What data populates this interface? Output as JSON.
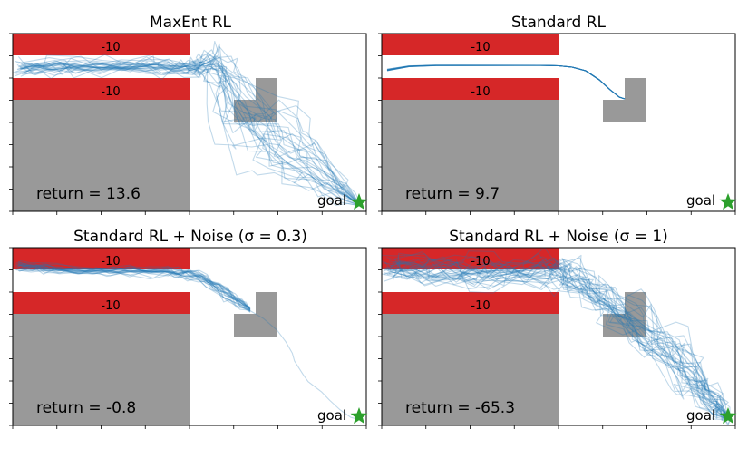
{
  "chart_data": [
    {
      "type": "trajectory",
      "title": "MaxEnt RL",
      "return_label": "return = 13.6",
      "goal_label": "goal",
      "cost_labels": [
        "-10",
        "-10"
      ],
      "trajectory_style": "diverse",
      "num_trajectories": 28,
      "colors": {
        "trajectory": "#1f77b4",
        "cost_region": "#d62728",
        "wall": "#999999",
        "goal": "#2ca02c"
      }
    },
    {
      "type": "trajectory",
      "title": "Standard RL",
      "return_label": "return = 9.7",
      "goal_label": "goal",
      "cost_labels": [
        "-10",
        "-10"
      ],
      "trajectory_style": "deterministic",
      "num_trajectories": 10,
      "colors": {
        "trajectory": "#1f77b4",
        "cost_region": "#d62728",
        "wall": "#999999",
        "goal": "#2ca02c"
      }
    },
    {
      "type": "trajectory",
      "title": "Standard RL + Noise (σ = 0.3)",
      "return_label": "return = -0.8",
      "goal_label": "goal",
      "cost_labels": [
        "-10",
        "-10"
      ],
      "trajectory_style": "low_noise",
      "num_trajectories": 22,
      "colors": {
        "trajectory": "#1f77b4",
        "cost_region": "#d62728",
        "wall": "#999999",
        "goal": "#2ca02c"
      }
    },
    {
      "type": "trajectory",
      "title": "Standard RL + Noise (σ = 1)",
      "return_label": "return = -65.3",
      "goal_label": "goal",
      "cost_labels": [
        "-10",
        "-10"
      ],
      "trajectory_style": "high_noise",
      "num_trajectories": 32,
      "colors": {
        "trajectory": "#1f77b4",
        "cost_region": "#d62728",
        "wall": "#999999",
        "goal": "#2ca02c"
      }
    }
  ]
}
